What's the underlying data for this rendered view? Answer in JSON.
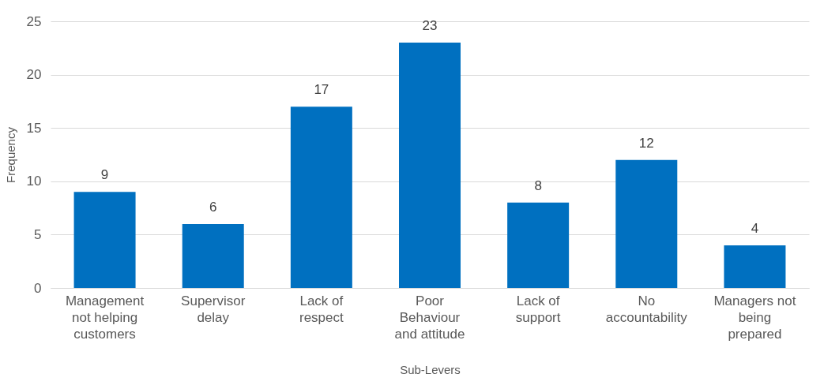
{
  "chart_data": {
    "type": "bar",
    "xlabel": "Sub-Levers",
    "ylabel": "Frequency",
    "categories": [
      "Management not helping customers",
      "Supervisor delay",
      "Lack of respect",
      "Poor Behaviour and attitude",
      "Lack of support",
      "No accountability",
      "Managers not being prepared"
    ],
    "values": [
      9,
      6,
      17,
      23,
      8,
      12,
      4
    ],
    "color": "#0070c0",
    "ylim": [
      0,
      25
    ],
    "yticks": [
      0,
      5,
      10,
      15,
      20,
      25
    ],
    "grid": "y",
    "data_labels": true
  }
}
